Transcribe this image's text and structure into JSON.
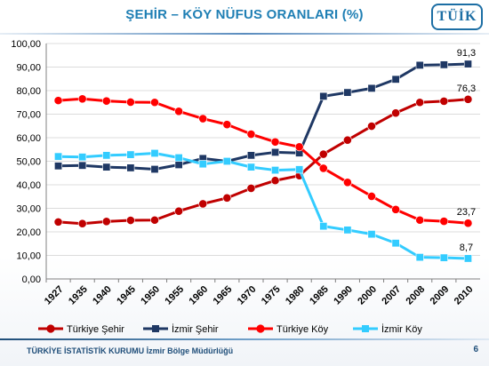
{
  "header": {
    "title": "ŞEHİR – KÖY NÜFUS ORANLARI (%)",
    "logo_text": "TÜİK"
  },
  "footer": {
    "organization": "TÜRKİYE İSTATİSTİK KURUMU İzmir Bölge Müdürlüğü",
    "page_number": "6"
  },
  "colors": {
    "title": "#1f7fb4",
    "turkiye_sehir": "#c00000",
    "izmir_sehir": "#1f3864",
    "turkiye_koy": "#ff0000",
    "izmir_koy": "#33ccff",
    "grid": "#d0d0d0"
  },
  "chart_data": {
    "type": "line",
    "title": "ŞEHİR – KÖY NÜFUS ORANLARI (%)",
    "categories": [
      "1927",
      "1935",
      "1940",
      "1945",
      "1950",
      "1955",
      "1960",
      "1965",
      "1970",
      "1975",
      "1980",
      "1985",
      "1990",
      "2000",
      "2007",
      "2008",
      "2009",
      "2010"
    ],
    "ylim": [
      0,
      100
    ],
    "yticks": [
      "0,00",
      "10,00",
      "20,00",
      "30,00",
      "40,00",
      "50,00",
      "60,00",
      "70,00",
      "80,00",
      "90,00",
      "100,00"
    ],
    "grid": true,
    "legend_position": "bottom",
    "series": [
      {
        "name": "Türkiye Şehir",
        "color": "#c00000",
        "marker": "circle",
        "values": [
          24.2,
          23.5,
          24.4,
          24.9,
          25.0,
          28.8,
          31.9,
          34.4,
          38.5,
          41.8,
          43.9,
          53.0,
          59.0,
          64.9,
          70.5,
          75.0,
          75.5,
          76.3
        ]
      },
      {
        "name": "İzmir Şehir",
        "color": "#1f3864",
        "marker": "square",
        "values": [
          48.0,
          48.2,
          47.5,
          47.2,
          46.6,
          48.5,
          51.2,
          50.0,
          52.5,
          53.8,
          53.5,
          77.6,
          79.2,
          81.0,
          84.8,
          90.8,
          91.0,
          91.3
        ]
      },
      {
        "name": "Türkiye Köy",
        "color": "#ff0000",
        "marker": "circle",
        "values": [
          75.8,
          76.5,
          75.6,
          75.1,
          75.0,
          71.2,
          68.1,
          65.6,
          61.5,
          58.2,
          56.1,
          47.0,
          41.0,
          35.1,
          29.5,
          25.0,
          24.5,
          23.7
        ]
      },
      {
        "name": "İzmir Köy",
        "color": "#33ccff",
        "marker": "square",
        "values": [
          52.0,
          51.8,
          52.5,
          52.8,
          53.4,
          51.5,
          48.8,
          50.0,
          47.5,
          46.2,
          46.5,
          22.4,
          20.8,
          19.0,
          15.2,
          9.2,
          9.0,
          8.7
        ]
      }
    ],
    "annotations": [
      {
        "series": 1,
        "index": 17,
        "text": "91,3"
      },
      {
        "series": 0,
        "index": 17,
        "text": "76,3"
      },
      {
        "series": 2,
        "index": 17,
        "text": "23,7"
      },
      {
        "series": 3,
        "index": 17,
        "text": "8,7"
      }
    ]
  }
}
